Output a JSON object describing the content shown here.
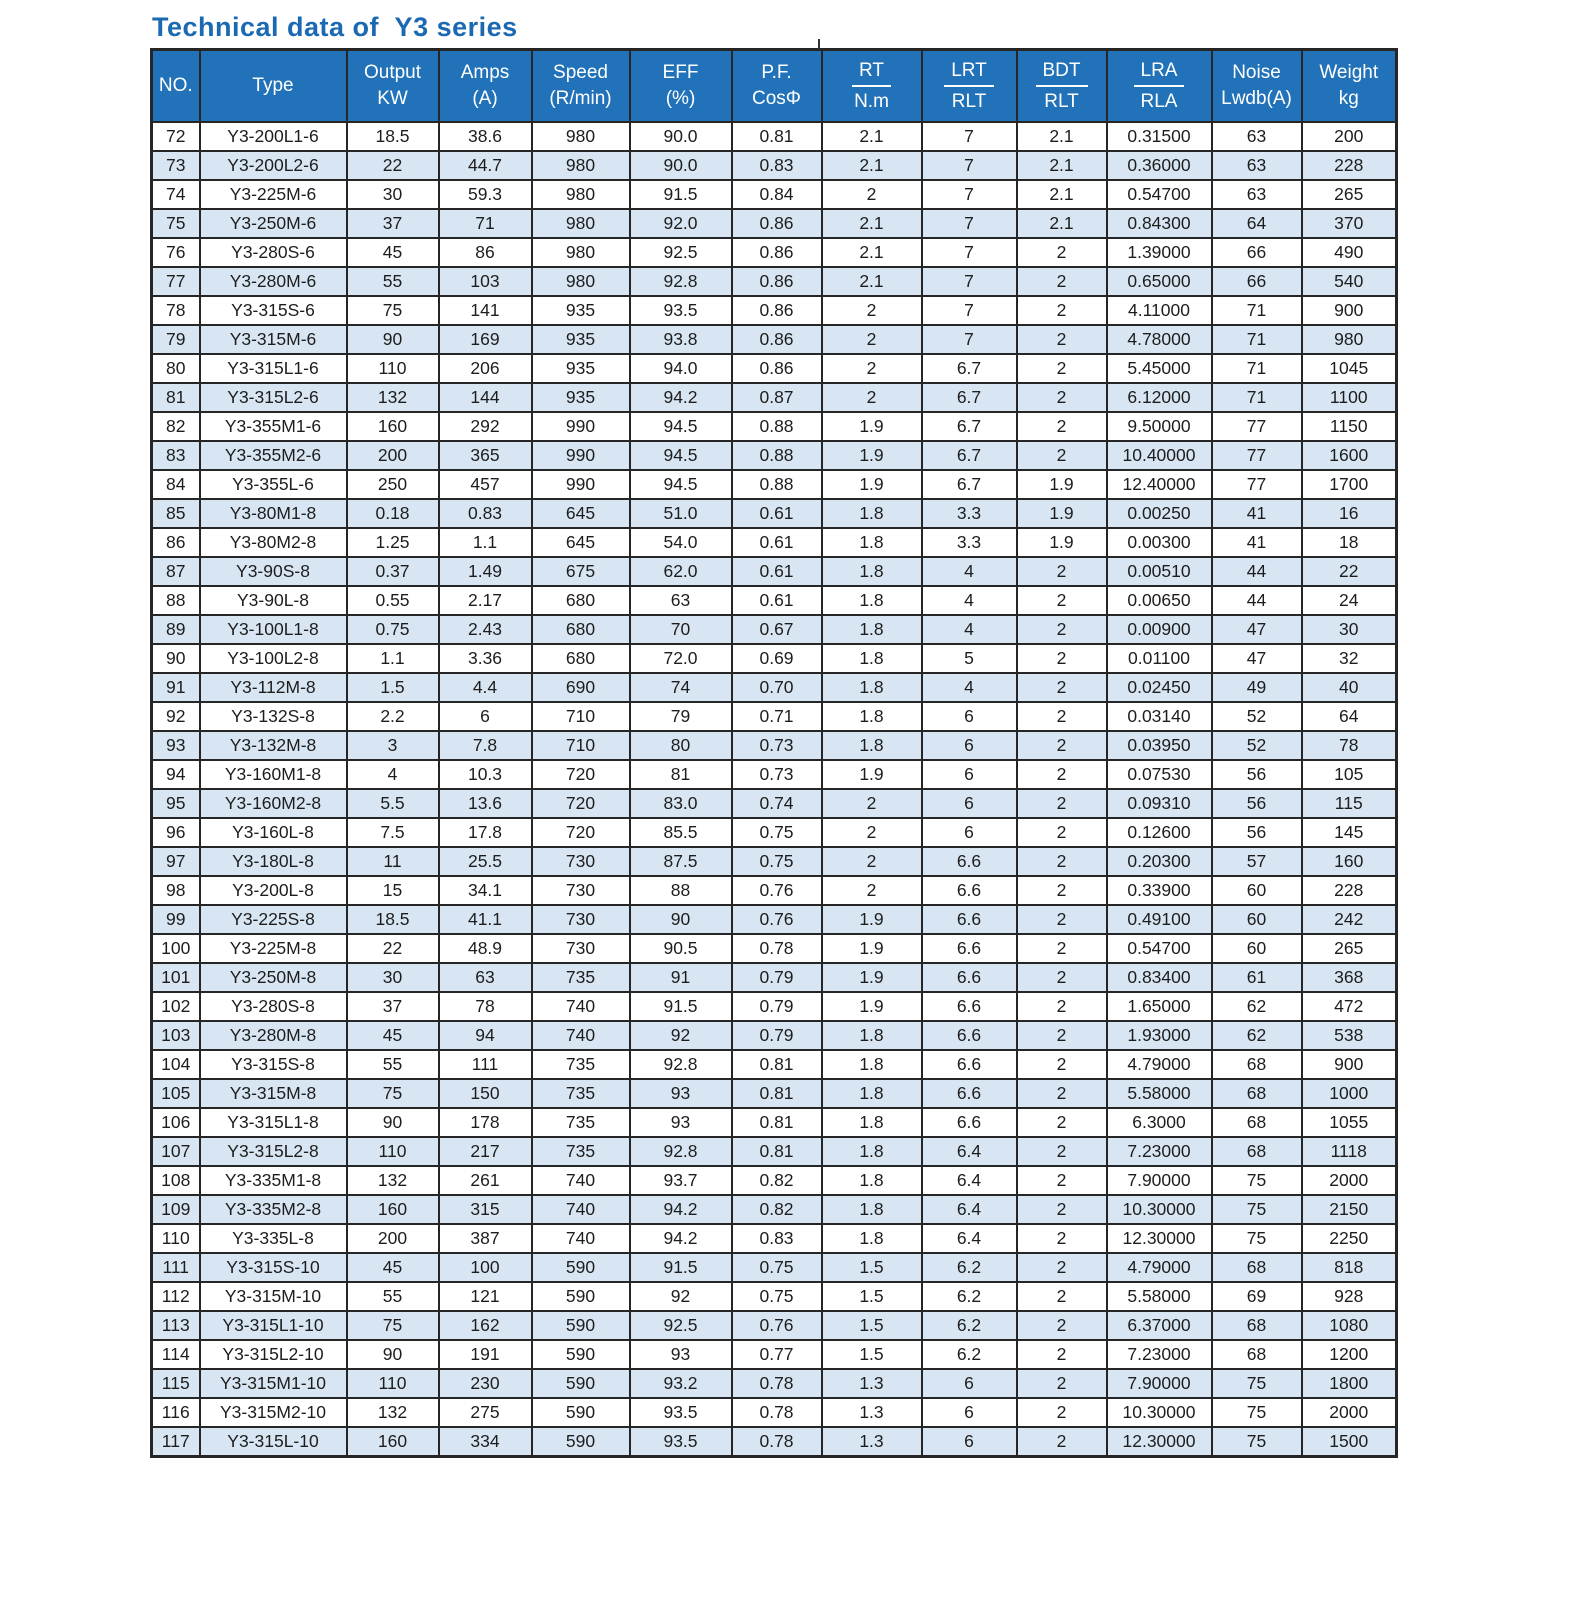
{
  "title": "Technical data of  Y3 series",
  "colors": {
    "header_bg": "#2272b9",
    "header_text": "#ffffff",
    "row_bg": "#ffffff",
    "row_alt_bg": "#d8e6f4",
    "grid_border": "#262626",
    "title_color": "#1a69b2"
  },
  "table": {
    "headers": [
      {
        "key": "no",
        "top": "NO.",
        "bottom": "",
        "fraction": false
      },
      {
        "key": "type",
        "top": "Type",
        "bottom": "",
        "fraction": false
      },
      {
        "key": "output",
        "top": "Output",
        "bottom": "KW",
        "fraction": false
      },
      {
        "key": "amps",
        "top": "Amps",
        "bottom": "(A)",
        "fraction": false
      },
      {
        "key": "speed",
        "top": "Speed",
        "bottom": "(R/min)",
        "fraction": false
      },
      {
        "key": "eff",
        "top": "EFF",
        "bottom": "(%)",
        "fraction": false
      },
      {
        "key": "pf",
        "top": "P.F.",
        "bottom": "CosΦ",
        "fraction": false
      },
      {
        "key": "rt",
        "top": "RT",
        "bottom": "N.m",
        "fraction": true
      },
      {
        "key": "lrt",
        "top": "LRT",
        "bottom": "RLT",
        "fraction": true
      },
      {
        "key": "bdt",
        "top": "BDT",
        "bottom": "RLT",
        "fraction": true
      },
      {
        "key": "lra",
        "top": "LRA",
        "bottom": "RLA",
        "fraction": true
      },
      {
        "key": "noise",
        "top": "Noise",
        "bottom": "Lwdb(A)",
        "fraction": false
      },
      {
        "key": "weight",
        "top": "Weight",
        "bottom": "kg",
        "fraction": false
      }
    ],
    "rows": [
      [
        "72",
        "Y3-200L1-6",
        "18.5",
        "38.6",
        "980",
        "90.0",
        "0.81",
        "2.1",
        "7",
        "2.1",
        "0.31500",
        "63",
        "200"
      ],
      [
        "73",
        "Y3-200L2-6",
        "22",
        "44.7",
        "980",
        "90.0",
        "0.83",
        "2.1",
        "7",
        "2.1",
        "0.36000",
        "63",
        "228"
      ],
      [
        "74",
        "Y3-225M-6",
        "30",
        "59.3",
        "980",
        "91.5",
        "0.84",
        "2",
        "7",
        "2.1",
        "0.54700",
        "63",
        "265"
      ],
      [
        "75",
        "Y3-250M-6",
        "37",
        "71",
        "980",
        "92.0",
        "0.86",
        "2.1",
        "7",
        "2.1",
        "0.84300",
        "64",
        "370"
      ],
      [
        "76",
        "Y3-280S-6",
        "45",
        "86",
        "980",
        "92.5",
        "0.86",
        "2.1",
        "7",
        "2",
        "1.39000",
        "66",
        "490"
      ],
      [
        "77",
        "Y3-280M-6",
        "55",
        "103",
        "980",
        "92.8",
        "0.86",
        "2.1",
        "7",
        "2",
        "0.65000",
        "66",
        "540"
      ],
      [
        "78",
        "Y3-315S-6",
        "75",
        "141",
        "935",
        "93.5",
        "0.86",
        "2",
        "7",
        "2",
        "4.11000",
        "71",
        "900"
      ],
      [
        "79",
        "Y3-315M-6",
        "90",
        "169",
        "935",
        "93.8",
        "0.86",
        "2",
        "7",
        "2",
        "4.78000",
        "71",
        "980"
      ],
      [
        "80",
        "Y3-315L1-6",
        "110",
        "206",
        "935",
        "94.0",
        "0.86",
        "2",
        "6.7",
        "2",
        "5.45000",
        "71",
        "1045"
      ],
      [
        "81",
        "Y3-315L2-6",
        "132",
        "144",
        "935",
        "94.2",
        "0.87",
        "2",
        "6.7",
        "2",
        "6.12000",
        "71",
        "1100"
      ],
      [
        "82",
        "Y3-355M1-6",
        "160",
        "292",
        "990",
        "94.5",
        "0.88",
        "1.9",
        "6.7",
        "2",
        "9.50000",
        "77",
        "1150"
      ],
      [
        "83",
        "Y3-355M2-6",
        "200",
        "365",
        "990",
        "94.5",
        "0.88",
        "1.9",
        "6.7",
        "2",
        "10.40000",
        "77",
        "1600"
      ],
      [
        "84",
        "Y3-355L-6",
        "250",
        "457",
        "990",
        "94.5",
        "0.88",
        "1.9",
        "6.7",
        "1.9",
        "12.40000",
        "77",
        "1700"
      ],
      [
        "85",
        "Y3-80M1-8",
        "0.18",
        "0.83",
        "645",
        "51.0",
        "0.61",
        "1.8",
        "3.3",
        "1.9",
        "0.00250",
        "41",
        "16"
      ],
      [
        "86",
        "Y3-80M2-8",
        "1.25",
        "1.1",
        "645",
        "54.0",
        "0.61",
        "1.8",
        "3.3",
        "1.9",
        "0.00300",
        "41",
        "18"
      ],
      [
        "87",
        "Y3-90S-8",
        "0.37",
        "1.49",
        "675",
        "62.0",
        "0.61",
        "1.8",
        "4",
        "2",
        "0.00510",
        "44",
        "22"
      ],
      [
        "88",
        "Y3-90L-8",
        "0.55",
        "2.17",
        "680",
        "63",
        "0.61",
        "1.8",
        "4",
        "2",
        "0.00650",
        "44",
        "24"
      ],
      [
        "89",
        "Y3-100L1-8",
        "0.75",
        "2.43",
        "680",
        "70",
        "0.67",
        "1.8",
        "4",
        "2",
        "0.00900",
        "47",
        "30"
      ],
      [
        "90",
        "Y3-100L2-8",
        "1.1",
        "3.36",
        "680",
        "72.0",
        "0.69",
        "1.8",
        "5",
        "2",
        "0.01100",
        "47",
        "32"
      ],
      [
        "91",
        "Y3-112M-8",
        "1.5",
        "4.4",
        "690",
        "74",
        "0.70",
        "1.8",
        "4",
        "2",
        "0.02450",
        "49",
        "40"
      ],
      [
        "92",
        "Y3-132S-8",
        "2.2",
        "6",
        "710",
        "79",
        "0.71",
        "1.8",
        "6",
        "2",
        "0.03140",
        "52",
        "64"
      ],
      [
        "93",
        "Y3-132M-8",
        "3",
        "7.8",
        "710",
        "80",
        "0.73",
        "1.8",
        "6",
        "2",
        "0.03950",
        "52",
        "78"
      ],
      [
        "94",
        "Y3-160M1-8",
        "4",
        "10.3",
        "720",
        "81",
        "0.73",
        "1.9",
        "6",
        "2",
        "0.07530",
        "56",
        "105"
      ],
      [
        "95",
        "Y3-160M2-8",
        "5.5",
        "13.6",
        "720",
        "83.0",
        "0.74",
        "2",
        "6",
        "2",
        "0.09310",
        "56",
        "115"
      ],
      [
        "96",
        "Y3-160L-8",
        "7.5",
        "17.8",
        "720",
        "85.5",
        "0.75",
        "2",
        "6",
        "2",
        "0.12600",
        "56",
        "145"
      ],
      [
        "97",
        "Y3-180L-8",
        "11",
        "25.5",
        "730",
        "87.5",
        "0.75",
        "2",
        "6.6",
        "2",
        "0.20300",
        "57",
        "160"
      ],
      [
        "98",
        "Y3-200L-8",
        "15",
        "34.1",
        "730",
        "88",
        "0.76",
        "2",
        "6.6",
        "2",
        "0.33900",
        "60",
        "228"
      ],
      [
        "99",
        "Y3-225S-8",
        "18.5",
        "41.1",
        "730",
        "90",
        "0.76",
        "1.9",
        "6.6",
        "2",
        "0.49100",
        "60",
        "242"
      ],
      [
        "100",
        "Y3-225M-8",
        "22",
        "48.9",
        "730",
        "90.5",
        "0.78",
        "1.9",
        "6.6",
        "2",
        "0.54700",
        "60",
        "265"
      ],
      [
        "101",
        "Y3-250M-8",
        "30",
        "63",
        "735",
        "91",
        "0.79",
        "1.9",
        "6.6",
        "2",
        "0.83400",
        "61",
        "368"
      ],
      [
        "102",
        "Y3-280S-8",
        "37",
        "78",
        "740",
        "91.5",
        "0.79",
        "1.9",
        "6.6",
        "2",
        "1.65000",
        "62",
        "472"
      ],
      [
        "103",
        "Y3-280M-8",
        "45",
        "94",
        "740",
        "92",
        "0.79",
        "1.8",
        "6.6",
        "2",
        "1.93000",
        "62",
        "538"
      ],
      [
        "104",
        "Y3-315S-8",
        "55",
        "111",
        "735",
        "92.8",
        "0.81",
        "1.8",
        "6.6",
        "2",
        "4.79000",
        "68",
        "900"
      ],
      [
        "105",
        "Y3-315M-8",
        "75",
        "150",
        "735",
        "93",
        "0.81",
        "1.8",
        "6.6",
        "2",
        "5.58000",
        "68",
        "1000"
      ],
      [
        "106",
        "Y3-315L1-8",
        "90",
        "178",
        "735",
        "93",
        "0.81",
        "1.8",
        "6.6",
        "2",
        "6.3000",
        "68",
        "1055"
      ],
      [
        "107",
        "Y3-315L2-8",
        "110",
        "217",
        "735",
        "92.8",
        "0.81",
        "1.8",
        "6.4",
        "2",
        "7.23000",
        "68",
        "1118"
      ],
      [
        "108",
        "Y3-335M1-8",
        "132",
        "261",
        "740",
        "93.7",
        "0.82",
        "1.8",
        "6.4",
        "2",
        "7.90000",
        "75",
        "2000"
      ],
      [
        "109",
        "Y3-335M2-8",
        "160",
        "315",
        "740",
        "94.2",
        "0.82",
        "1.8",
        "6.4",
        "2",
        "10.30000",
        "75",
        "2150"
      ],
      [
        "110",
        "Y3-335L-8",
        "200",
        "387",
        "740",
        "94.2",
        "0.83",
        "1.8",
        "6.4",
        "2",
        "12.30000",
        "75",
        "2250"
      ],
      [
        "111",
        "Y3-315S-10",
        "45",
        "100",
        "590",
        "91.5",
        "0.75",
        "1.5",
        "6.2",
        "2",
        "4.79000",
        "68",
        "818"
      ],
      [
        "112",
        "Y3-315M-10",
        "55",
        "121",
        "590",
        "92",
        "0.75",
        "1.5",
        "6.2",
        "2",
        "5.58000",
        "69",
        "928"
      ],
      [
        "113",
        "Y3-315L1-10",
        "75",
        "162",
        "590",
        "92.5",
        "0.76",
        "1.5",
        "6.2",
        "2",
        "6.37000",
        "68",
        "1080"
      ],
      [
        "114",
        "Y3-315L2-10",
        "90",
        "191",
        "590",
        "93",
        "0.77",
        "1.5",
        "6.2",
        "2",
        "7.23000",
        "68",
        "1200"
      ],
      [
        "115",
        "Y3-315M1-10",
        "110",
        "230",
        "590",
        "93.2",
        "0.78",
        "1.3",
        "6",
        "2",
        "7.90000",
        "75",
        "1800"
      ],
      [
        "116",
        "Y3-315M2-10",
        "132",
        "275",
        "590",
        "93.5",
        "0.78",
        "1.3",
        "6",
        "2",
        "10.30000",
        "75",
        "2000"
      ],
      [
        "117",
        "Y3-315L-10",
        "160",
        "334",
        "590",
        "93.5",
        "0.78",
        "1.3",
        "6",
        "2",
        "12.30000",
        "75",
        "1500"
      ]
    ]
  }
}
